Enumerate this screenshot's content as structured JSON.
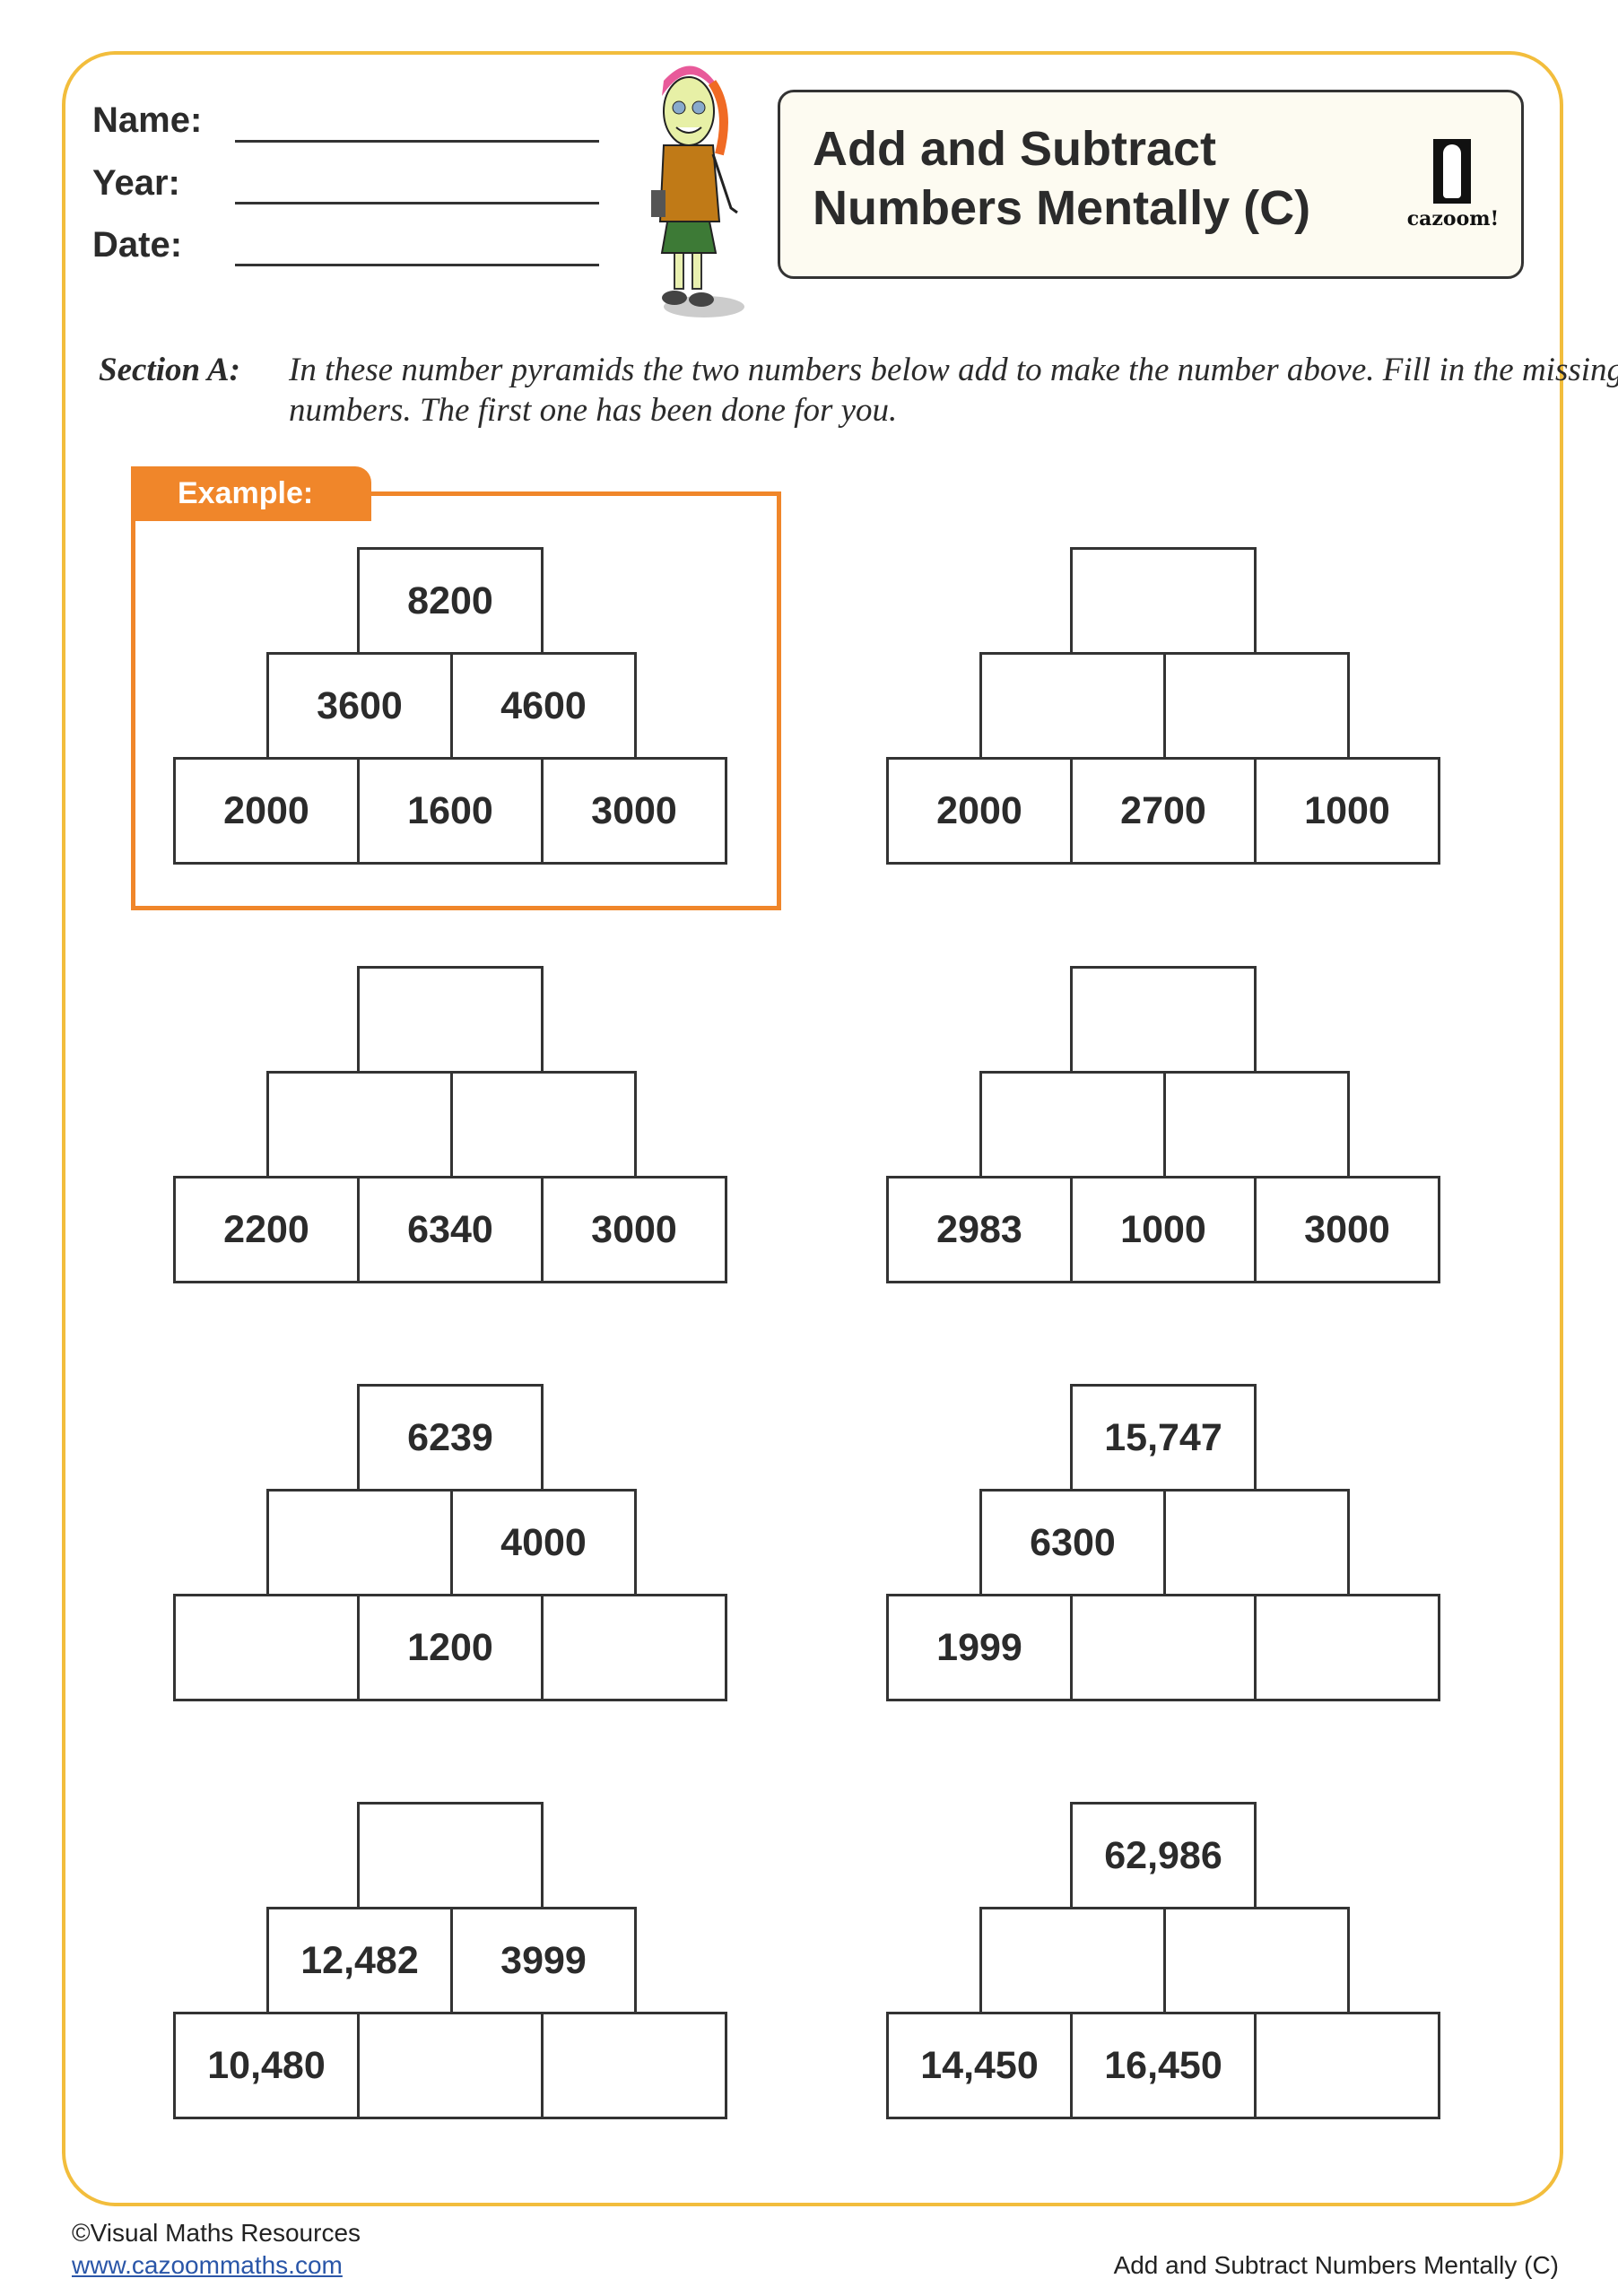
{
  "header": {
    "name_label": "Name:",
    "year_label": "Year:",
    "date_label": "Date:",
    "title_line1": "Add and Subtract",
    "title_line2": "Numbers Mentally (C)",
    "logo_text": "cazoom!"
  },
  "section_a": {
    "label": "Section A:",
    "instructions": "In these number pyramids the two numbers below add to make the number above. Fill in the missing numbers. The first one has been done for you."
  },
  "example_label": "Example:",
  "pyramids": [
    {
      "top": "8200",
      "middle": [
        "3600",
        "4600"
      ],
      "bottom": [
        "2000",
        "1600",
        "3000"
      ]
    },
    {
      "top": "",
      "middle": [
        "",
        ""
      ],
      "bottom": [
        "2000",
        "2700",
        "1000"
      ]
    },
    {
      "top": "",
      "middle": [
        "",
        ""
      ],
      "bottom": [
        "2200",
        "6340",
        "3000"
      ]
    },
    {
      "top": "",
      "middle": [
        "",
        ""
      ],
      "bottom": [
        "2983",
        "1000",
        "3000"
      ]
    },
    {
      "top": "6239",
      "middle": [
        "",
        "4000"
      ],
      "bottom": [
        "",
        "1200",
        ""
      ]
    },
    {
      "top": "15,747",
      "middle": [
        "6300",
        ""
      ],
      "bottom": [
        "1999",
        "",
        ""
      ]
    },
    {
      "top": "",
      "middle": [
        "12,482",
        "3999"
      ],
      "bottom": [
        "10,480",
        "",
        ""
      ]
    },
    {
      "top": "62,986",
      "middle": [
        "",
        ""
      ],
      "bottom": [
        "14,450",
        "16,450",
        ""
      ]
    }
  ],
  "footer": {
    "copyright": "©Visual Maths Resources",
    "link": "www.cazoommaths.com",
    "worksheet_title": "Add and Subtract Numbers Mentally (C)"
  },
  "colors": {
    "frame": "#f2bd3c",
    "accent": "#f0862a",
    "link": "#2a56a8"
  }
}
